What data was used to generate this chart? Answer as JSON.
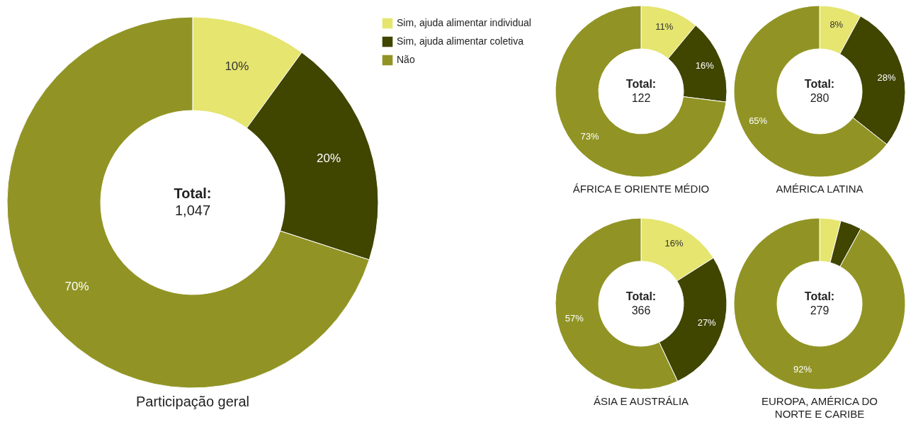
{
  "chart_data": [
    {
      "type": "donut",
      "title": "Participação geral",
      "categories": [
        "Sim, ajuda alimentar individual",
        "Sim, ajuda alimentar coletiva",
        "Não"
      ],
      "values": [
        10,
        20,
        70
      ],
      "colors": [
        "#e5e56f",
        "#404500",
        "#919424"
      ],
      "value_labels": [
        "10%",
        "20%",
        "70%"
      ],
      "annotations": [
        "Total:",
        "1,047"
      ],
      "legend": "top right"
    },
    {
      "type": "donut",
      "title": "ÁFRICA E ORIENTE MÉDIO",
      "categories": [
        null,
        null,
        null
      ],
      "values": [
        11,
        16,
        73
      ],
      "colors": [
        "#e5e56f",
        "#404500",
        "#919424"
      ],
      "value_labels": [
        "11%",
        "16%",
        "73%"
      ],
      "annotations": [
        "Total:",
        "122"
      ]
    },
    {
      "type": "donut",
      "title": "AMÉRICA LATINA",
      "categories": [
        null,
        null,
        null
      ],
      "values": [
        8,
        28,
        65
      ],
      "colors": [
        "#e5e56f",
        "#404500",
        "#919424"
      ],
      "value_labels": [
        "8%",
        "28%",
        "65%"
      ],
      "annotations": [
        "Total:",
        "280"
      ]
    },
    {
      "type": "donut",
      "title": "ÁSIA E AUSTRÁLIA",
      "categories": [
        null,
        null,
        null
      ],
      "values": [
        16,
        27,
        57
      ],
      "colors": [
        "#e5e56f",
        "#404500",
        "#919424"
      ],
      "value_labels": [
        "16%",
        "27%",
        "57%"
      ],
      "annotations": [
        "Total:",
        "366"
      ]
    },
    {
      "type": "donut",
      "title": "EUROPA, AMÉRICA DO NORTE E CARIBE",
      "categories": [
        null,
        null,
        null
      ],
      "values": [
        4,
        4,
        92
      ],
      "colors": [
        "#e5e56f",
        "#404500",
        "#919424"
      ],
      "value_labels": [
        null,
        null,
        "92%"
      ],
      "annotations": [
        "Total:",
        "279"
      ]
    }
  ]
}
